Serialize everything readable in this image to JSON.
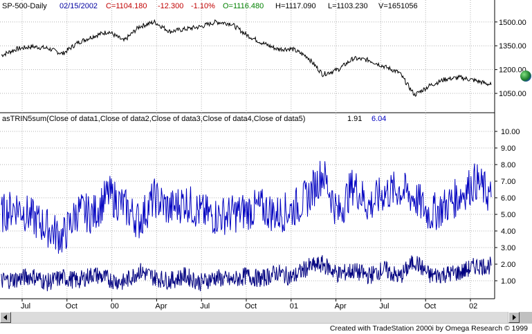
{
  "header": {
    "symbol": "SP-500-Daily",
    "date": "02/15/2002",
    "close": "C=1104.180",
    "change": "-12.300",
    "change_pct": "-1.10%",
    "open": "O=1116.480",
    "high": "H=1117.090",
    "low": "L=1103.230",
    "volume": "V=1651056"
  },
  "indicator": {
    "label": "asTRIN5sum(Close of data1,Close of data2,Close of data3,Close of data4,Close of data5)",
    "value1": "1.91",
    "value2": "6.04"
  },
  "price_axis": {
    "ticks": [
      "1500.00",
      "1350.00",
      "1200.00",
      "1050.00"
    ]
  },
  "indicator_axis": {
    "ticks": [
      "10.00",
      "9.00",
      "8.00",
      "7.00",
      "6.00",
      "5.00",
      "4.00",
      "3.00",
      "2.00",
      "1.00"
    ]
  },
  "time_axis": {
    "ticks": [
      "Jul",
      "Oct",
      "00",
      "Apr",
      "Jul",
      "Oct",
      "01",
      "Apr",
      "Jul",
      "Oct",
      "02"
    ]
  },
  "footer": {
    "credit": "Created with TradeStation 2000i by Omega Research © 1999"
  },
  "colors": {
    "price_line": "#000000",
    "trin_line": "#0000c0",
    "trin_daily": "#000080",
    "grid": "#b0b0b0",
    "close_text": "#c00000",
    "open_text": "#008000",
    "date_text": "#0000a0"
  },
  "chart_data": [
    {
      "type": "line",
      "name": "SP-500-Daily",
      "ylim": [
        950,
        1560
      ],
      "x": [
        "1999-06",
        "1999-07",
        "1999-08",
        "1999-09",
        "1999-10",
        "1999-11",
        "1999-12",
        "2000-01",
        "2000-02",
        "2000-03",
        "2000-04",
        "2000-05",
        "2000-06",
        "2000-07",
        "2000-08",
        "2000-09",
        "2000-10",
        "2000-11",
        "2000-12",
        "2001-01",
        "2001-02",
        "2001-03",
        "2001-04",
        "2001-05",
        "2001-06",
        "2001-07",
        "2001-08",
        "2001-09",
        "2001-10",
        "2001-11",
        "2001-12",
        "2002-01",
        "2002-02"
      ],
      "values": [
        1290,
        1330,
        1345,
        1335,
        1300,
        1370,
        1410,
        1440,
        1380,
        1470,
        1500,
        1440,
        1455,
        1470,
        1500,
        1490,
        1420,
        1370,
        1330,
        1330,
        1280,
        1170,
        1200,
        1270,
        1260,
        1220,
        1180,
        1040,
        1100,
        1140,
        1150,
        1130,
        1104
      ]
    },
    {
      "type": "line",
      "name": "asTRIN5sum",
      "ylim": [
        0,
        10.5
      ],
      "x": [
        "1999-06",
        "1999-07",
        "1999-08",
        "1999-09",
        "1999-10",
        "1999-11",
        "1999-12",
        "2000-01",
        "2000-02",
        "2000-03",
        "2000-04",
        "2000-05",
        "2000-06",
        "2000-07",
        "2000-08",
        "2000-09",
        "2000-10",
        "2000-11",
        "2000-12",
        "2001-01",
        "2001-02",
        "2001-03",
        "2001-04",
        "2001-05",
        "2001-06",
        "2001-07",
        "2001-08",
        "2001-09",
        "2001-10",
        "2001-11",
        "2001-12",
        "2002-01",
        "2002-02"
      ],
      "series": [
        {
          "values": [
            5.0,
            5.5,
            4.8,
            4.2,
            3.6,
            5.2,
            5.0,
            6.2,
            5.5,
            4.6,
            6.0,
            5.3,
            5.8,
            5.1,
            4.9,
            5.0,
            5.2,
            5.4,
            5.0,
            5.3,
            6.0,
            7.5,
            5.0,
            6.8,
            5.5,
            6.3,
            6.5,
            6.0,
            5.0,
            5.5,
            6.2,
            7.0,
            6.04
          ]
        },
        {
          "values": [
            1.0,
            1.1,
            1.3,
            0.9,
            1.2,
            1.0,
            1.4,
            1.1,
            0.9,
            1.6,
            1.2,
            1.0,
            1.3,
            0.9,
            1.2,
            1.0,
            1.3,
            1.1,
            1.5,
            1.2,
            1.8,
            2.0,
            1.4,
            1.6,
            1.3,
            1.7,
            1.2,
            2.2,
            1.3,
            1.4,
            1.5,
            1.9,
            1.91
          ]
        }
      ]
    }
  ]
}
